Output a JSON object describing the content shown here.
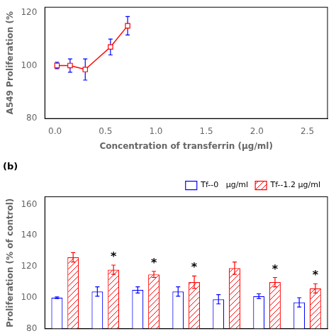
{
  "chart_data": [
    {
      "type": "line",
      "x": [
        0.02,
        0.15,
        0.3,
        0.55,
        0.72
      ],
      "series": [
        {
          "color": "red",
          "marker": "square",
          "values": [
            100,
            100,
            98.5,
            107,
            115
          ],
          "yerr": [
            1.2,
            2.5,
            4.0,
            3.0,
            3.5
          ]
        }
      ],
      "xlabel": "Concentration of transferrin (μg/ml)",
      "ylabel": "A549 Proliferation (%",
      "xlim": [
        -0.1,
        2.7
      ],
      "ylim": [
        80,
        122
      ],
      "xticks": [
        {
          "value": 0,
          "label": "0.0"
        },
        0.5,
        {
          "value": 1,
          "label": "1.0"
        },
        1.5,
        {
          "value": 2,
          "label": "2.0"
        },
        2.5
      ],
      "yticks": [
        80,
        100,
        120
      ],
      "grid": false
    },
    {
      "type": "bar",
      "title": "(b)",
      "categories": [
        null,
        null,
        null,
        null,
        null,
        null,
        null
      ],
      "series": [
        {
          "name": "Tf--0   μg/ml",
          "color": "blue",
          "values": [
            100,
            104,
            105,
            104,
            99,
            101,
            97
          ],
          "yerr": [
            0.5,
            3,
            2,
            3,
            3,
            1.5,
            3
          ]
        },
        {
          "name": "Tf--1.2 μg/ml",
          "color": "red",
          "values": [
            126,
            118,
            115,
            110,
            119,
            110,
            106
          ],
          "yerr": [
            3,
            3,
            2,
            4,
            4,
            3,
            3
          ]
        }
      ],
      "ylabel": "Proliferation (% of control)",
      "ylim": [
        80,
        165
      ],
      "yticks": [
        80,
        100,
        120,
        140,
        160
      ],
      "grid": false,
      "legend": "upper right",
      "tick_labels": "y",
      "annotations": [
        {
          "series": "Tf--1.2 μg/ml",
          "category_index": 1,
          "text": "*"
        },
        {
          "series": "Tf--1.2 μg/ml",
          "category_index": 2,
          "text": "*"
        },
        {
          "series": "Tf--1.2 μg/ml",
          "category_index": 3,
          "text": "*"
        },
        {
          "series": "Tf--1.2 μg/ml",
          "category_index": 5,
          "text": "*"
        },
        {
          "series": "Tf--1.2 μg/ml",
          "category_index": 6,
          "text": "*"
        }
      ]
    }
  ]
}
